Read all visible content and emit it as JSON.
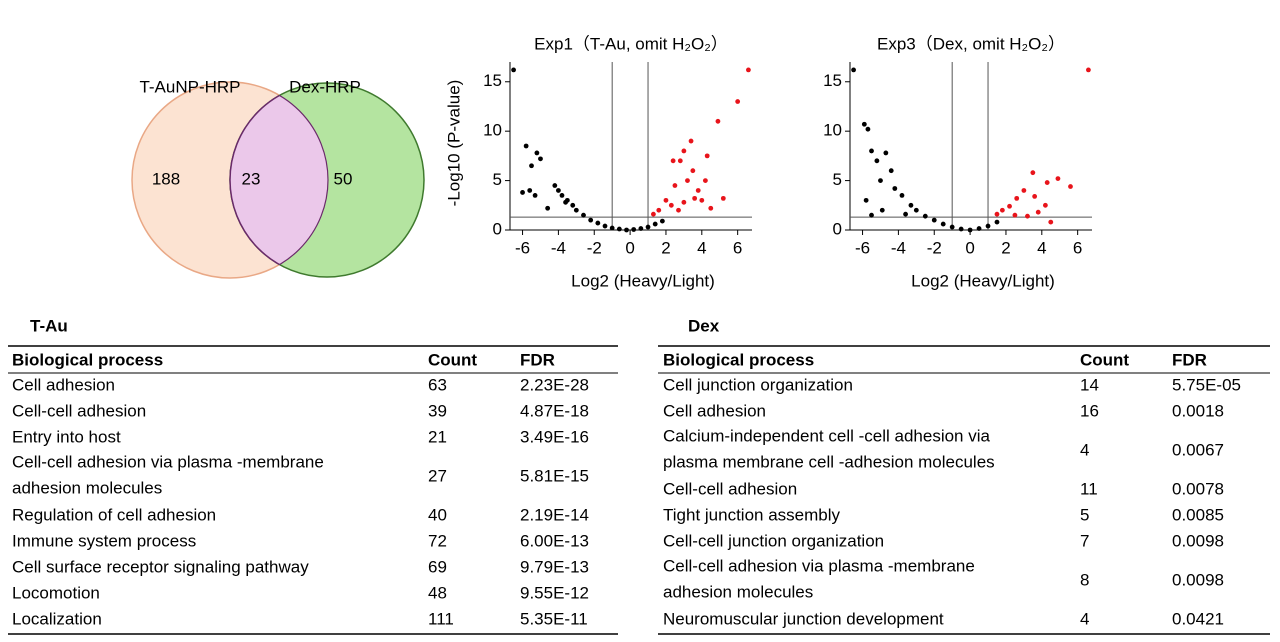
{
  "venn": {
    "sets": [
      {
        "label": "T-AuNP-HRP"
      },
      {
        "label": "Dex-HRP"
      }
    ],
    "only_a": 188,
    "both": 23,
    "only_b": 50
  },
  "chart_data": [
    {
      "type": "scatter",
      "title": "Exp1（T-Au, omit H₂O₂）",
      "xlabel": "Log2 (Heavy/Light)",
      "ylabel": "-Log10 (P-value)",
      "xlim": [
        -6.7,
        6.8
      ],
      "ylim": [
        0,
        17
      ],
      "xticks": [
        -6,
        -4,
        -2,
        0,
        2,
        4,
        6
      ],
      "yticks": [
        0,
        5,
        10,
        15
      ],
      "vlines": [
        -1,
        1
      ],
      "hline": 1.3,
      "series": [
        {
          "color": "#000000",
          "x": [
            -6.5,
            -5.8,
            -5.5,
            -5.2,
            -5.0,
            -5.6,
            -5.3,
            -4.2,
            -4,
            -3.8,
            -3.5,
            -3.2,
            -3,
            -2.6,
            -2.2,
            -1.8,
            -1.4,
            -1,
            -0.6,
            -0.2,
            0.2,
            0.6,
            1,
            1.4,
            1.8,
            -6,
            -4.6,
            -3.6
          ],
          "values": [
            16.2,
            8.5,
            6.5,
            7.8,
            7.2,
            4,
            3.5,
            4.5,
            4,
            3.5,
            3,
            2.5,
            2,
            1.5,
            1,
            0.7,
            0.4,
            0.2,
            0.1,
            0,
            0.05,
            0.15,
            0.3,
            0.6,
            0.9,
            3.8,
            2.2,
            2.8
          ]
        },
        {
          "color": "#e8141b",
          "x": [
            6.6,
            6,
            4.9,
            4.3,
            3.5,
            3,
            2.8,
            3.2,
            2.5,
            2,
            1.6,
            1.3,
            2.3,
            3.8,
            4,
            4.5,
            5.2,
            3.6,
            2.7,
            3,
            3.4,
            2.4,
            4.2
          ],
          "values": [
            16.2,
            13,
            11,
            7.5,
            6,
            8,
            7,
            5,
            4.5,
            3,
            2,
            1.6,
            2.5,
            4,
            3,
            2.2,
            3.2,
            3.2,
            2,
            2.8,
            9,
            7,
            5
          ]
        }
      ]
    },
    {
      "type": "scatter",
      "title": "Exp3（Dex, omit H₂O₂）",
      "xlabel": "Log2 (Heavy/Light)",
      "xlim": [
        -6.7,
        6.8
      ],
      "ylim": [
        0,
        17
      ],
      "xticks": [
        -6,
        -4,
        -2,
        0,
        2,
        4,
        6
      ],
      "yticks": [
        0,
        5,
        10,
        15
      ],
      "vlines": [
        -1,
        1
      ],
      "hline": 1.3,
      "series": [
        {
          "color": "#000000",
          "x": [
            -6.5,
            -5.9,
            -5.7,
            -5.5,
            -5.2,
            -4.7,
            -4.4,
            -5.8,
            -5,
            -4.2,
            -3.8,
            -3.3,
            -3,
            -2.5,
            -2,
            -1.5,
            -1,
            -0.5,
            0,
            0.5,
            1,
            1.5,
            -5.5,
            -4.9,
            -3.6
          ],
          "values": [
            16.2,
            10.7,
            10.2,
            8,
            7,
            7.8,
            6,
            3,
            5,
            4.2,
            3.5,
            2.5,
            2,
            1.4,
            1,
            0.6,
            0.3,
            0.1,
            0,
            0.15,
            0.4,
            0.8,
            1.5,
            2,
            1.6
          ]
        },
        {
          "color": "#e8141b",
          "x": [
            6.6,
            5.6,
            4.9,
            4.3,
            3.5,
            3,
            2.6,
            2.2,
            1.8,
            1.5,
            4.2,
            3.8,
            3.2,
            2.5,
            4.5,
            3.6
          ],
          "values": [
            16.2,
            4.4,
            5.2,
            4.8,
            5.8,
            4,
            3.2,
            2.4,
            2,
            1.6,
            2.5,
            1.8,
            1.4,
            1.5,
            0.8,
            3.4
          ]
        }
      ]
    }
  ],
  "tables": [
    {
      "title": "T-Au",
      "header": [
        "Biological process",
        "Count",
        "FDR"
      ],
      "rows": [
        [
          [
            "Cell adhesion"
          ],
          63,
          "2.23E-28"
        ],
        [
          [
            "Cell-cell adhesion"
          ],
          39,
          "4.87E-18"
        ],
        [
          [
            "Entry into host"
          ],
          21,
          "3.49E-16"
        ],
        [
          [
            "Cell-cell adhesion via plasma -membrane",
            "adhesion molecules"
          ],
          27,
          "5.81E-15"
        ],
        [
          [
            "Regulation of cell adhesion"
          ],
          40,
          "2.19E-14"
        ],
        [
          [
            "Immune system process"
          ],
          72,
          "6.00E-13"
        ],
        [
          [
            "Cell surface receptor signaling pathway"
          ],
          69,
          "9.79E-13"
        ],
        [
          [
            "Locomotion"
          ],
          48,
          "9.55E-12"
        ],
        [
          [
            "Localization"
          ],
          111,
          "5.35E-11"
        ]
      ]
    },
    {
      "title": "Dex",
      "header": [
        "Biological process",
        "Count",
        "FDR"
      ],
      "rows": [
        [
          [
            "Cell junction organization"
          ],
          14,
          "5.75E-05"
        ],
        [
          [
            "Cell adhesion"
          ],
          16,
          "0.0018"
        ],
        [
          [
            "Calcium-independent cell -cell adhesion via",
            "plasma membrane cell -adhesion molecules"
          ],
          4,
          "0.0067"
        ],
        [
          [
            "Cell-cell adhesion"
          ],
          11,
          "0.0078"
        ],
        [
          [
            "Tight junction assembly"
          ],
          5,
          "0.0085"
        ],
        [
          [
            "Cell-cell junction organization"
          ],
          7,
          "0.0098"
        ],
        [
          [
            "Cell-cell adhesion via plasma -membrane",
            "adhesion molecules"
          ],
          8,
          "0.0098"
        ],
        [
          [
            "Neuromuscular junction development"
          ],
          4,
          "0.0421"
        ]
      ]
    }
  ]
}
